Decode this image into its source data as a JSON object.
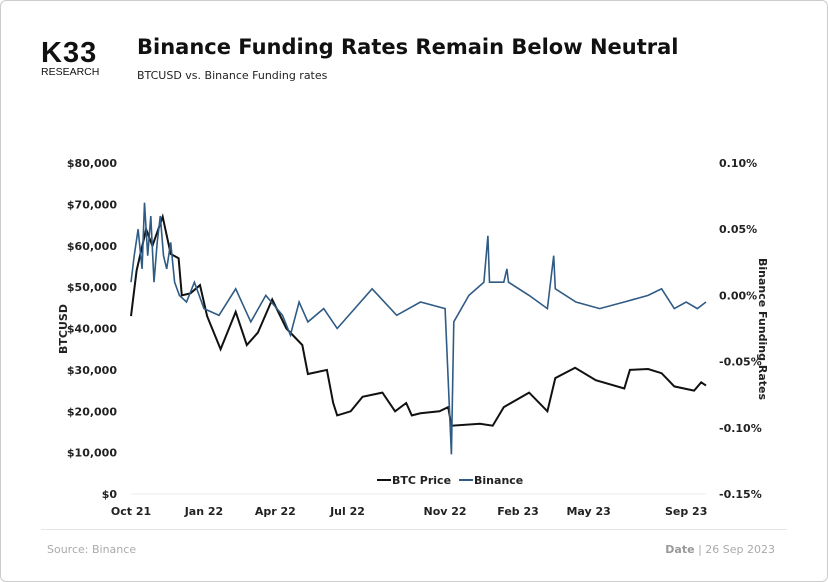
{
  "logo": {
    "text": "K33",
    "sub": "RESEARCH"
  },
  "title": "Binance Funding Rates Remain Below Neutral",
  "subtitle": "BTCUSD vs. Binance Funding rates",
  "footer": {
    "source": "Source: Binance",
    "date_label": "Date",
    "date_value": "| 26 Sep 2023"
  },
  "chart_data": {
    "type": "line",
    "xlabel": "",
    "ylabel": "BTCUSD",
    "y2label": "Binance Funding Rates",
    "x_ticks": [
      "Oct 21",
      "Jan 22",
      "Apr 22",
      "Jul 22",
      "Nov 22",
      "Feb 23",
      "May 23",
      "Sep 23"
    ],
    "x_tick_dates": [
      "2021-10-01",
      "2022-01-01",
      "2022-04-01",
      "2022-07-01",
      "2022-11-01",
      "2023-02-01",
      "2023-05-01",
      "2023-09-01"
    ],
    "y_ticks": [
      "$0",
      "$10,000",
      "$20,000",
      "$30,000",
      "$40,000",
      "$50,000",
      "$60,000",
      "$70,000",
      "$80,000"
    ],
    "ylim": [
      0,
      80000
    ],
    "y2_ticks": [
      "-0.15%",
      "-0.10%",
      "-0.05%",
      "0.00%",
      "0.05%",
      "0.10%"
    ],
    "y2lim": [
      -0.15,
      0.1
    ],
    "grid": false,
    "legend": {
      "placement": "bottom",
      "entries": [
        "BTC Price",
        "Binance"
      ]
    },
    "colors": {
      "BTC Price": "#111111",
      "Binance": "#2f5b85"
    },
    "series": [
      {
        "name": "BTC Price",
        "axis": "left",
        "points": [
          [
            "2021-10-01",
            43000
          ],
          [
            "2021-10-08",
            54000
          ],
          [
            "2021-10-20",
            64000
          ],
          [
            "2021-10-28",
            60000
          ],
          [
            "2021-11-10",
            67000
          ],
          [
            "2021-11-20",
            58000
          ],
          [
            "2021-11-30",
            57000
          ],
          [
            "2021-12-04",
            48000
          ],
          [
            "2021-12-15",
            48500
          ],
          [
            "2021-12-27",
            50500
          ],
          [
            "2022-01-05",
            43000
          ],
          [
            "2022-01-22",
            35000
          ],
          [
            "2022-02-10",
            44000
          ],
          [
            "2022-02-24",
            36000
          ],
          [
            "2022-03-10",
            39000
          ],
          [
            "2022-03-28",
            47000
          ],
          [
            "2022-04-15",
            40000
          ],
          [
            "2022-05-05",
            36000
          ],
          [
            "2022-05-12",
            29000
          ],
          [
            "2022-06-05",
            30000
          ],
          [
            "2022-06-13",
            22000
          ],
          [
            "2022-06-18",
            19000
          ],
          [
            "2022-07-05",
            20000
          ],
          [
            "2022-07-20",
            23500
          ],
          [
            "2022-08-14",
            24500
          ],
          [
            "2022-08-30",
            20000
          ],
          [
            "2022-09-13",
            22000
          ],
          [
            "2022-09-20",
            19000
          ],
          [
            "2022-10-01",
            19500
          ],
          [
            "2022-10-25",
            20000
          ],
          [
            "2022-11-05",
            21000
          ],
          [
            "2022-11-09",
            16500
          ],
          [
            "2022-12-15",
            17000
          ],
          [
            "2022-12-31",
            16500
          ],
          [
            "2023-01-14",
            21000
          ],
          [
            "2023-02-15",
            24500
          ],
          [
            "2023-03-10",
            20000
          ],
          [
            "2023-03-20",
            28000
          ],
          [
            "2023-04-14",
            30500
          ],
          [
            "2023-05-10",
            27500
          ],
          [
            "2023-06-15",
            25500
          ],
          [
            "2023-06-22",
            30000
          ],
          [
            "2023-07-15",
            30200
          ],
          [
            "2023-08-01",
            29200
          ],
          [
            "2023-08-17",
            26000
          ],
          [
            "2023-09-11",
            25000
          ],
          [
            "2023-09-20",
            27000
          ],
          [
            "2023-09-26",
            26200
          ]
        ]
      },
      {
        "name": "Binance",
        "axis": "right",
        "points": [
          [
            "2021-10-01",
            0.01
          ],
          [
            "2021-10-05",
            0.03
          ],
          [
            "2021-10-10",
            0.05
          ],
          [
            "2021-10-15",
            0.02
          ],
          [
            "2021-10-18",
            0.07
          ],
          [
            "2021-10-22",
            0.03
          ],
          [
            "2021-10-26",
            0.06
          ],
          [
            "2021-10-30",
            0.01
          ],
          [
            "2021-11-03",
            0.04
          ],
          [
            "2021-11-07",
            0.06
          ],
          [
            "2021-11-11",
            0.03
          ],
          [
            "2021-11-15",
            0.02
          ],
          [
            "2021-11-20",
            0.04
          ],
          [
            "2021-11-25",
            0.01
          ],
          [
            "2021-12-01",
            0.0
          ],
          [
            "2021-12-10",
            -0.005
          ],
          [
            "2021-12-20",
            0.01
          ],
          [
            "2022-01-01",
            -0.01
          ],
          [
            "2022-01-20",
            -0.015
          ],
          [
            "2022-02-10",
            0.005
          ],
          [
            "2022-03-01",
            -0.02
          ],
          [
            "2022-03-20",
            0.0
          ],
          [
            "2022-04-10",
            -0.015
          ],
          [
            "2022-04-20",
            -0.03
          ],
          [
            "2022-05-01",
            -0.005
          ],
          [
            "2022-05-12",
            -0.02
          ],
          [
            "2022-06-01",
            -0.01
          ],
          [
            "2022-06-18",
            -0.025
          ],
          [
            "2022-07-10",
            -0.01
          ],
          [
            "2022-08-01",
            0.005
          ],
          [
            "2022-09-01",
            -0.015
          ],
          [
            "2022-10-01",
            -0.005
          ],
          [
            "2022-11-01",
            -0.01
          ],
          [
            "2022-11-09",
            -0.12
          ],
          [
            "2022-11-12",
            -0.02
          ],
          [
            "2022-12-01",
            0.0
          ],
          [
            "2022-12-20",
            0.01
          ],
          [
            "2022-12-25",
            0.045
          ],
          [
            "2022-12-27",
            0.01
          ],
          [
            "2023-01-14",
            0.01
          ],
          [
            "2023-01-18",
            0.02
          ],
          [
            "2023-01-20",
            0.01
          ],
          [
            "2023-02-15",
            0.0
          ],
          [
            "2023-03-10",
            -0.01
          ],
          [
            "2023-03-18",
            0.03
          ],
          [
            "2023-03-20",
            0.005
          ],
          [
            "2023-04-15",
            -0.005
          ],
          [
            "2023-05-15",
            -0.01
          ],
          [
            "2023-06-15",
            -0.005
          ],
          [
            "2023-07-15",
            0.0
          ],
          [
            "2023-08-01",
            0.005
          ],
          [
            "2023-08-17",
            -0.01
          ],
          [
            "2023-09-01",
            -0.005
          ],
          [
            "2023-09-15",
            -0.01
          ],
          [
            "2023-09-26",
            -0.005
          ]
        ]
      }
    ]
  }
}
